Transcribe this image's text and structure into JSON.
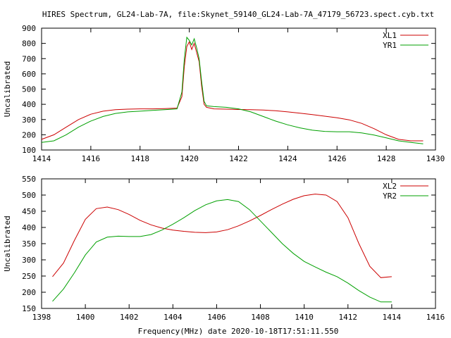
{
  "colors": {
    "xl": "#cc0000",
    "yr": "#00a000",
    "axis": "#000000",
    "background": "#ffffff"
  },
  "chart_data": [
    {
      "type": "line",
      "title": "HIRES Spectrum, GL24-Lab-7A, file:Skynet_59140_GL24-Lab-7A_47179_56723.spect.cyb.txt",
      "xlabel": "",
      "ylabel": "Uncalibrated",
      "xlim": [
        1414,
        1430
      ],
      "ylim": [
        100,
        900
      ],
      "xticks": [
        1414,
        1416,
        1418,
        1420,
        1422,
        1424,
        1426,
        1428,
        1430
      ],
      "yticks": [
        100,
        200,
        300,
        400,
        500,
        600,
        700,
        800,
        900
      ],
      "legend": "top-right",
      "grid": false,
      "series": [
        {
          "name": "XL1",
          "color_key": "xl",
          "x": [
            1414.0,
            1414.5,
            1415.0,
            1415.5,
            1416.0,
            1416.5,
            1417.0,
            1417.5,
            1418.0,
            1418.5,
            1419.0,
            1419.5,
            1419.7,
            1419.8,
            1419.9,
            1420.0,
            1420.1,
            1420.2,
            1420.3,
            1420.4,
            1420.5,
            1420.6,
            1420.7,
            1421.0,
            1421.5,
            1422.0,
            1422.5,
            1423.0,
            1423.5,
            1424.0,
            1424.5,
            1425.0,
            1425.5,
            1426.0,
            1426.5,
            1427.0,
            1427.5,
            1428.0,
            1428.5,
            1429.0,
            1429.5
          ],
          "y": [
            170,
            200,
            250,
            300,
            335,
            355,
            365,
            368,
            370,
            370,
            372,
            375,
            450,
            650,
            780,
            810,
            760,
            800,
            740,
            680,
            520,
            400,
            380,
            370,
            368,
            366,
            365,
            362,
            358,
            350,
            342,
            332,
            322,
            312,
            298,
            275,
            240,
            200,
            170,
            160,
            160
          ]
        },
        {
          "name": "YR1",
          "color_key": "yr",
          "x": [
            1414.0,
            1414.5,
            1415.0,
            1415.5,
            1416.0,
            1416.5,
            1417.0,
            1417.5,
            1418.0,
            1418.5,
            1419.0,
            1419.5,
            1419.7,
            1419.8,
            1419.9,
            1420.0,
            1420.1,
            1420.2,
            1420.3,
            1420.4,
            1420.5,
            1420.6,
            1420.7,
            1421.0,
            1421.5,
            1422.0,
            1422.5,
            1423.0,
            1423.5,
            1424.0,
            1424.5,
            1425.0,
            1425.5,
            1426.0,
            1426.5,
            1427.0,
            1427.5,
            1428.0,
            1428.5,
            1429.0,
            1429.5
          ],
          "y": [
            150,
            160,
            200,
            250,
            290,
            320,
            340,
            350,
            355,
            360,
            365,
            370,
            480,
            700,
            840,
            820,
            790,
            830,
            770,
            700,
            550,
            420,
            390,
            385,
            380,
            370,
            350,
            320,
            290,
            265,
            245,
            230,
            222,
            220,
            220,
            212,
            198,
            180,
            160,
            150,
            140
          ]
        }
      ]
    },
    {
      "type": "line",
      "title": "",
      "xlabel": "Frequency(MHz) date 2020-10-18T17:51:11.550",
      "ylabel": "Uncalibrated",
      "xlim": [
        1398,
        1416
      ],
      "ylim": [
        150,
        550
      ],
      "xticks": [
        1398,
        1400,
        1402,
        1404,
        1406,
        1408,
        1410,
        1412,
        1414,
        1416
      ],
      "yticks": [
        150,
        200,
        250,
        300,
        350,
        400,
        450,
        500,
        550
      ],
      "legend": "top-right",
      "grid": false,
      "series": [
        {
          "name": "XL2",
          "color_key": "xl",
          "x": [
            1398.5,
            1399.0,
            1399.5,
            1400.0,
            1400.5,
            1401.0,
            1401.5,
            1402.0,
            1402.5,
            1403.0,
            1403.5,
            1404.0,
            1404.5,
            1405.0,
            1405.5,
            1406.0,
            1406.5,
            1407.0,
            1407.5,
            1408.0,
            1408.5,
            1409.0,
            1409.5,
            1410.0,
            1410.5,
            1411.0,
            1411.5,
            1412.0,
            1412.5,
            1413.0,
            1413.5,
            1414.0
          ],
          "y": [
            248,
            290,
            360,
            425,
            458,
            463,
            455,
            440,
            422,
            408,
            398,
            392,
            388,
            385,
            384,
            386,
            393,
            405,
            420,
            437,
            455,
            472,
            487,
            498,
            503,
            500,
            480,
            430,
            350,
            280,
            245,
            248
          ]
        },
        {
          "name": "YR2",
          "color_key": "yr",
          "x": [
            1398.5,
            1399.0,
            1399.5,
            1400.0,
            1400.5,
            1401.0,
            1401.5,
            1402.0,
            1402.5,
            1403.0,
            1403.5,
            1404.0,
            1404.5,
            1405.0,
            1405.5,
            1406.0,
            1406.5,
            1407.0,
            1407.5,
            1408.0,
            1408.5,
            1409.0,
            1409.5,
            1410.0,
            1410.5,
            1411.0,
            1411.5,
            1412.0,
            1412.5,
            1413.0,
            1413.5,
            1414.0
          ],
          "y": [
            172,
            210,
            260,
            315,
            355,
            370,
            373,
            372,
            372,
            378,
            392,
            410,
            430,
            452,
            470,
            482,
            486,
            480,
            455,
            420,
            385,
            350,
            320,
            295,
            278,
            262,
            248,
            228,
            205,
            185,
            170,
            170
          ]
        }
      ]
    }
  ]
}
